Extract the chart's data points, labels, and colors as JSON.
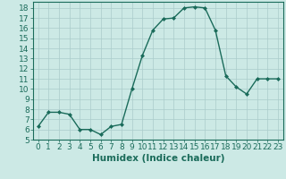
{
  "x": [
    0,
    1,
    2,
    3,
    4,
    5,
    6,
    7,
    8,
    9,
    10,
    11,
    12,
    13,
    14,
    15,
    16,
    17,
    18,
    19,
    20,
    21,
    22,
    23
  ],
  "y": [
    6.3,
    7.7,
    7.7,
    7.5,
    6.0,
    6.0,
    5.5,
    6.3,
    6.5,
    10.0,
    13.3,
    15.8,
    16.9,
    17.0,
    18.0,
    18.1,
    18.0,
    15.8,
    11.3,
    10.2,
    9.5,
    11.0,
    11.0,
    11.0
  ],
  "line_color": "#1a6b5a",
  "marker": "D",
  "marker_size": 2.0,
  "bg_color": "#cce9e5",
  "grid_color": "#aaccca",
  "xlabel": "Humidex (Indice chaleur)",
  "ylim": [
    5,
    18.6
  ],
  "yticks": [
    5,
    6,
    7,
    8,
    9,
    10,
    11,
    12,
    13,
    14,
    15,
    16,
    17,
    18
  ],
  "xticks": [
    0,
    1,
    2,
    3,
    4,
    5,
    6,
    7,
    8,
    9,
    10,
    11,
    12,
    13,
    14,
    15,
    16,
    17,
    18,
    19,
    20,
    21,
    22,
    23
  ],
  "xlabel_fontsize": 7.5,
  "tick_fontsize": 6.5,
  "linewidth": 1.0
}
